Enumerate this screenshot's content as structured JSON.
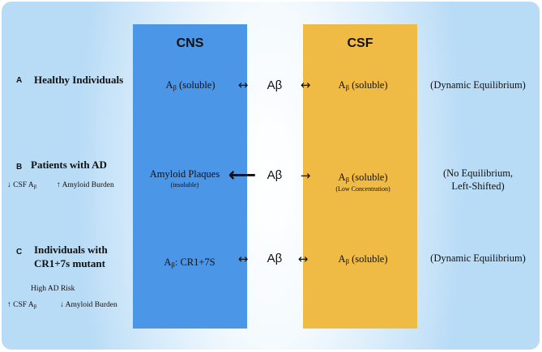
{
  "columns": {
    "cns_title": "CNS",
    "csf_title": "CSF"
  },
  "rows": [
    {
      "letter": "A",
      "label": "Healthy Individuals",
      "cns": {
        "main": "A",
        "sub": "β",
        "rest": " (soluble)"
      },
      "left_arrow": "↔",
      "mid": "Aβ",
      "right_arrow": "↔",
      "csf": {
        "main": "A",
        "sub": "β",
        "rest": " (soluble)"
      },
      "equilibrium": "(Dynamic Equilibrium)"
    },
    {
      "letter": "B",
      "label": "Patients with AD",
      "note_left": {
        "arrow": "↓",
        "text": " CSF A",
        "sub": "β"
      },
      "note_right": {
        "arrow": "↑",
        "text": "Amyloid Burden"
      },
      "cns": {
        "main": "Amyloid Plaques",
        "small": "(insoluble)"
      },
      "left_arrow": "⟵",
      "mid": "Aβ",
      "right_arrow": "→",
      "csf": {
        "main": "A",
        "sub": "β",
        "rest": " (soluble)",
        "small": "(Low Concentration)"
      },
      "equilibrium_line1": "(No Equilibrium,",
      "equilibrium_line2": "Left-Shifted)"
    },
    {
      "letter": "C",
      "label_line1": "Individuals with",
      "label_line2": "CR1+7s mutant",
      "risk": "High AD Risk",
      "note_left": {
        "arrow": "↑",
        "text": " CSF A",
        "sub": "β"
      },
      "note_right": {
        "arrow": "↓",
        "text": "Amyloid Burden"
      },
      "cns": {
        "main": "A",
        "sub": "β",
        "rest": ": CR1+7S"
      },
      "left_arrow": "↔",
      "mid": "Aβ",
      "right_arrow": "↔",
      "csf": {
        "main": "A",
        "sub": "β",
        "rest": " (soluble)"
      },
      "equilibrium": "(Dynamic Equilibrium)"
    }
  ]
}
